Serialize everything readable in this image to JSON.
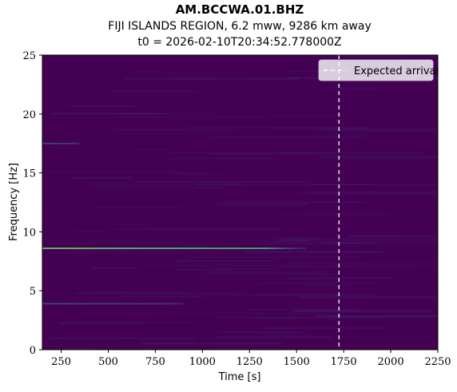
{
  "title": "AM.BCCWA.01.BHZ",
  "subtitle": "FIJI ISLANDS REGION, 6.2 mww, 9286 km away",
  "t0_label": "t0 = 2026-02-10T20:34:52.778000Z",
  "chart_data": {
    "type": "heatmap",
    "title": "AM.BCCWA.01.BHZ",
    "xlabel": "Time [s]",
    "ylabel": "Frequency [Hz]",
    "xlim": [
      150,
      2250
    ],
    "ylim": [
      0,
      25
    ],
    "x_ticks": [
      250,
      500,
      750,
      1000,
      1250,
      1500,
      1750,
      2000,
      2250
    ],
    "y_ticks": [
      0,
      5,
      10,
      15,
      20,
      25
    ],
    "colormap": "viridis",
    "background_color": "#440154",
    "features": [
      {
        "freq": 8.6,
        "t_start": 150,
        "t_end": 1550,
        "intensity": 0.75
      },
      {
        "freq": 3.9,
        "t_start": 150,
        "t_end": 900,
        "intensity": 0.2
      },
      {
        "freq": 17.5,
        "t_start": 150,
        "t_end": 350,
        "intensity": 0.22
      }
    ],
    "markers": [
      {
        "label": "Expected arrival",
        "x": 1725,
        "style": "dashed",
        "color": "#ffffff"
      }
    ],
    "legend": {
      "position": "top-right",
      "entries": [
        "Expected arrival"
      ]
    }
  }
}
